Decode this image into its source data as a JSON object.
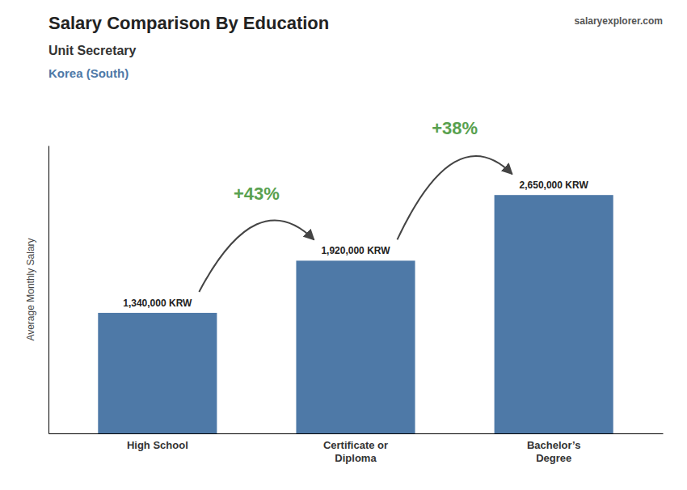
{
  "chart_data": {
    "type": "bar",
    "title": "Salary Comparison By Education",
    "subtitle": "Unit Secretary",
    "ylabel": "Average Monthly Salary",
    "categories": [
      "High School",
      "Certificate or\nDiploma",
      "Bachelor’s\nDegree"
    ],
    "values": [
      1340000,
      1920000,
      2650000
    ],
    "value_labels": [
      "1,340,000 KRW",
      "1,920,000 KRW",
      "2,650,000 KRW"
    ],
    "data_labels": true,
    "ylim": [
      0,
      3200000
    ],
    "tick_labels": "x",
    "annotations": [
      "Korea (South)",
      "salaryexplorer.com",
      "+43%",
      "+38%"
    ]
  }
}
